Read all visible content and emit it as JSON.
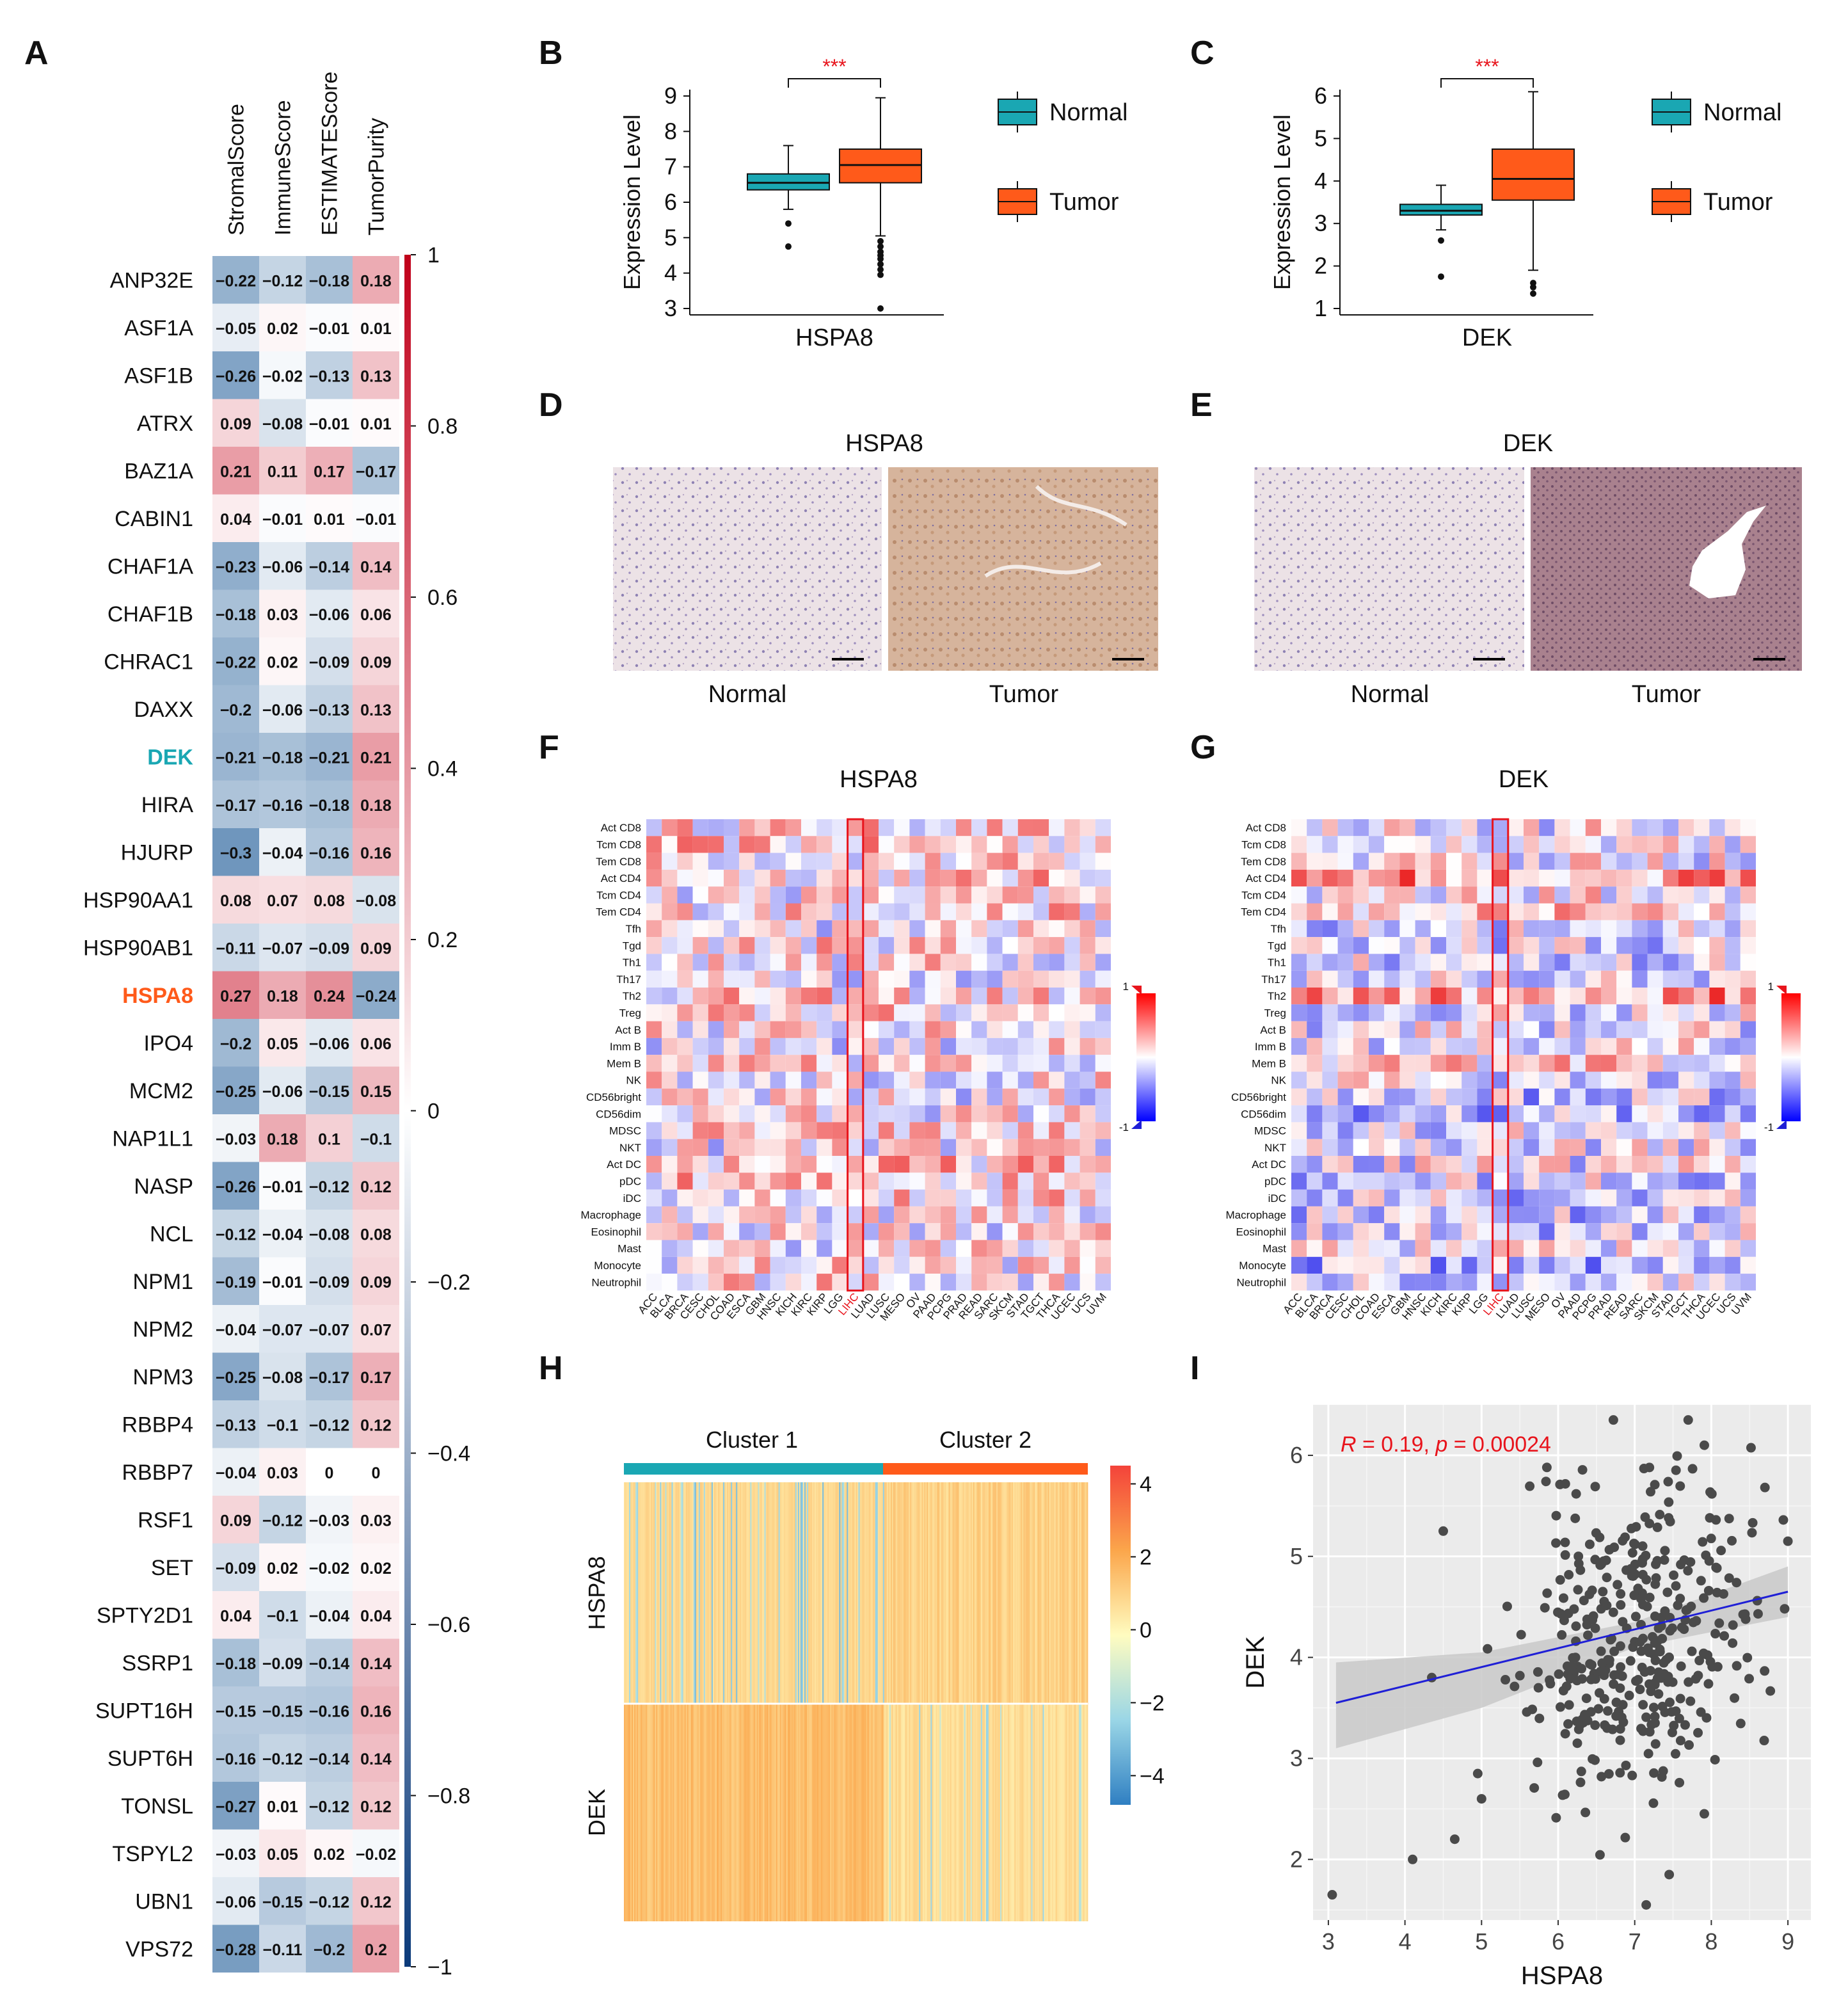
{
  "colors": {
    "teal": "#1aa7b3",
    "orange": "#ff5a1a",
    "red": "#e8141c",
    "pos": "#c0001a",
    "neg": "#0a3a7a",
    "blue": "#1f1fd6",
    "sigstar": "#e8141c"
  },
  "panels": [
    "A",
    "B",
    "C",
    "D",
    "E",
    "F",
    "G",
    "H",
    "I"
  ],
  "chart_data": [
    {
      "panel": "A",
      "type": "heatmap",
      "columns": [
        "StromalScore",
        "ImmuneScore",
        "ESTIMATEScore",
        "TumorPurity"
      ],
      "colorbar_ticks": [
        "1",
        "0.8",
        "0.6",
        "0.4",
        "0.2",
        "0",
        "−0.2",
        "−0.4",
        "−0.6",
        "−0.8",
        "−1"
      ],
      "rows": [
        {
          "gene": "ANP32E",
          "vals": [
            -0.22,
            -0.12,
            -0.18,
            0.18
          ]
        },
        {
          "gene": "ASF1A",
          "vals": [
            -0.05,
            0.02,
            -0.01,
            0.01
          ]
        },
        {
          "gene": "ASF1B",
          "vals": [
            -0.26,
            -0.02,
            -0.13,
            0.13
          ]
        },
        {
          "gene": "ATRX",
          "vals": [
            0.09,
            -0.08,
            -0.01,
            0.01
          ]
        },
        {
          "gene": "BAZ1A",
          "vals": [
            0.21,
            0.11,
            0.17,
            -0.17
          ]
        },
        {
          "gene": "CABIN1",
          "vals": [
            0.04,
            -0.01,
            0.01,
            -0.01
          ]
        },
        {
          "gene": "CHAF1A",
          "vals": [
            -0.23,
            -0.06,
            -0.14,
            0.14
          ]
        },
        {
          "gene": "CHAF1B",
          "vals": [
            -0.18,
            0.03,
            -0.06,
            0.06
          ]
        },
        {
          "gene": "CHRAC1",
          "vals": [
            -0.22,
            0.02,
            -0.09,
            0.09
          ]
        },
        {
          "gene": "DAXX",
          "vals": [
            -0.2,
            -0.06,
            -0.13,
            0.13
          ]
        },
        {
          "gene": "DEK",
          "vals": [
            -0.21,
            -0.18,
            -0.21,
            0.21
          ],
          "highlight": "teal"
        },
        {
          "gene": "HIRA",
          "vals": [
            -0.17,
            -0.16,
            -0.18,
            0.18
          ]
        },
        {
          "gene": "HJURP",
          "vals": [
            -0.3,
            -0.04,
            -0.16,
            0.16
          ]
        },
        {
          "gene": "HSP90AA1",
          "vals": [
            0.08,
            0.07,
            0.08,
            -0.08
          ]
        },
        {
          "gene": "HSP90AB1",
          "vals": [
            -0.11,
            -0.07,
            -0.09,
            0.09
          ]
        },
        {
          "gene": "HSPA8",
          "vals": [
            0.27,
            0.18,
            0.24,
            -0.24
          ],
          "highlight": "orange"
        },
        {
          "gene": "IPO4",
          "vals": [
            -0.2,
            0.05,
            -0.06,
            0.06
          ]
        },
        {
          "gene": "MCM2",
          "vals": [
            -0.25,
            -0.06,
            -0.15,
            0.15
          ]
        },
        {
          "gene": "NAP1L1",
          "vals": [
            -0.03,
            0.18,
            0.1,
            -0.1
          ]
        },
        {
          "gene": "NASP",
          "vals": [
            -0.26,
            -0.01,
            -0.12,
            0.12
          ]
        },
        {
          "gene": "NCL",
          "vals": [
            -0.12,
            -0.04,
            -0.08,
            0.08
          ]
        },
        {
          "gene": "NPM1",
          "vals": [
            -0.19,
            -0.01,
            -0.09,
            0.09
          ]
        },
        {
          "gene": "NPM2",
          "vals": [
            -0.04,
            -0.07,
            -0.07,
            0.07
          ]
        },
        {
          "gene": "NPM3",
          "vals": [
            -0.25,
            -0.08,
            -0.17,
            0.17
          ]
        },
        {
          "gene": "RBBP4",
          "vals": [
            -0.13,
            -0.1,
            -0.12,
            0.12
          ]
        },
        {
          "gene": "RBBP7",
          "vals": [
            -0.04,
            0.03,
            0,
            0
          ]
        },
        {
          "gene": "RSF1",
          "vals": [
            0.09,
            -0.12,
            -0.03,
            0.03
          ]
        },
        {
          "gene": "SET",
          "vals": [
            -0.09,
            0.02,
            -0.02,
            0.02
          ]
        },
        {
          "gene": "SPTY2D1",
          "vals": [
            0.04,
            -0.1,
            -0.04,
            0.04
          ]
        },
        {
          "gene": "SSRP1",
          "vals": [
            -0.18,
            -0.09,
            -0.14,
            0.14
          ]
        },
        {
          "gene": "SUPT16H",
          "vals": [
            -0.15,
            -0.15,
            -0.16,
            0.16
          ]
        },
        {
          "gene": "SUPT6H",
          "vals": [
            -0.16,
            -0.12,
            -0.14,
            0.14
          ]
        },
        {
          "gene": "TONSL",
          "vals": [
            -0.27,
            0.01,
            -0.12,
            0.12
          ]
        },
        {
          "gene": "TSPYL2",
          "vals": [
            -0.03,
            0.05,
            0.02,
            -0.02
          ]
        },
        {
          "gene": "UBN1",
          "vals": [
            -0.06,
            -0.15,
            -0.12,
            0.12
          ]
        },
        {
          "gene": "VPS72",
          "vals": [
            -0.28,
            -0.11,
            -0.2,
            0.2
          ]
        }
      ]
    },
    {
      "panel": "B",
      "type": "box",
      "ylabel": "Expression Level",
      "xlabel": "HSPA8",
      "significance": "***",
      "ylim": [
        3,
        9
      ],
      "yticks": [
        3,
        4,
        5,
        6,
        7,
        8,
        9
      ],
      "legend": [
        "Normal",
        "Tumor"
      ],
      "boxes": [
        {
          "name": "Normal",
          "q1": 6.35,
          "median": 6.55,
          "q3": 6.8,
          "lo": 5.8,
          "hi": 7.6,
          "outliers": [
            5.4,
            4.75
          ]
        },
        {
          "name": "Tumor",
          "q1": 6.55,
          "median": 7.05,
          "q3": 7.5,
          "lo": 5.05,
          "hi": 8.95,
          "outliers": [
            4.9,
            4.75,
            4.6,
            4.5,
            4.4,
            4.25,
            4.1,
            3.95,
            3.0
          ]
        }
      ]
    },
    {
      "panel": "C",
      "type": "box",
      "ylabel": "Expression Level",
      "xlabel": "DEK",
      "significance": "***",
      "ylim": [
        1,
        6
      ],
      "yticks": [
        1,
        2,
        3,
        4,
        5,
        6
      ],
      "legend": [
        "Normal",
        "Tumor"
      ],
      "boxes": [
        {
          "name": "Normal",
          "q1": 3.2,
          "median": 3.3,
          "q3": 3.45,
          "lo": 2.85,
          "hi": 3.9,
          "outliers": [
            2.6,
            1.75
          ]
        },
        {
          "name": "Tumor",
          "q1": 3.55,
          "median": 4.05,
          "q3": 4.75,
          "lo": 1.9,
          "hi": 6.1,
          "outliers": [
            1.6,
            1.5,
            1.35
          ]
        }
      ]
    },
    {
      "panel": "F",
      "type": "heatmap",
      "title": "HSPA8",
      "highlight_column": "LIHC",
      "cells": [
        "Act CD8",
        "Tcm CD8",
        "Tem CD8",
        "Act CD4",
        "Tcm CD4",
        "Tem CD4",
        "Tfh",
        "Tgd",
        "Th1",
        "Th17",
        "Th2",
        "Treg",
        "Act B",
        "Imm B",
        "Mem B",
        "NK",
        "CD56bright",
        "CD56dim",
        "MDSC",
        "NKT",
        "Act DC",
        "pDC",
        "iDC",
        "Macrophage",
        "Eosinophil",
        "Mast",
        "Monocyte",
        "Neutrophil"
      ],
      "cancers": [
        "ACC",
        "BLCA",
        "BRCA",
        "CESC",
        "CHOL",
        "COAD",
        "ESCA",
        "GBM",
        "HNSC",
        "KICH",
        "KIRC",
        "KIRP",
        "LGG",
        "LIHC",
        "LUAD",
        "LUSC",
        "MESO",
        "OV",
        "PAAD",
        "PCPG",
        "PRAD",
        "READ",
        "SARC",
        "SKCM",
        "STAD",
        "TGCT",
        "THCA",
        "UCEC",
        "UCS",
        "UVM"
      ],
      "scale": [
        "1",
        "-1"
      ]
    },
    {
      "panel": "G",
      "type": "heatmap",
      "title": "DEK",
      "highlight_column": "LIHC",
      "cells": [
        "Act CD8",
        "Tcm CD8",
        "Tem CD8",
        "Act CD4",
        "Tcm CD4",
        "Tem CD4",
        "Tfh",
        "Tgd",
        "Th1",
        "Th17",
        "Th2",
        "Treg",
        "Act B",
        "Imm B",
        "Mem B",
        "NK",
        "CD56bright",
        "CD56dim",
        "MDSC",
        "NKT",
        "Act DC",
        "pDC",
        "iDC",
        "Macrophage",
        "Eosinophil",
        "Mast",
        "Monocyte",
        "Neutrophil"
      ],
      "cancers": [
        "ACC",
        "BLCA",
        "BRCA",
        "CESC",
        "CHOL",
        "COAD",
        "ESCA",
        "GBM",
        "HNSC",
        "KICH",
        "KIRC",
        "KIRP",
        "LGG",
        "LIHC",
        "LUAD",
        "LUSC",
        "MESO",
        "OV",
        "PAAD",
        "PCPG",
        "PRAD",
        "READ",
        "SARC",
        "SKCM",
        "STAD",
        "TGCT",
        "THCA",
        "UCEC",
        "UCS",
        "UVM"
      ],
      "scale": [
        "1",
        "-1"
      ]
    },
    {
      "panel": "H",
      "type": "heatmap",
      "rows": [
        "HSPA8",
        "DEK"
      ],
      "clusters": [
        "Cluster 1",
        "Cluster 2"
      ],
      "colorbar_ticks": [
        "4",
        "2",
        "0",
        "−2",
        "−4"
      ],
      "range": [
        -4.8,
        4.5
      ]
    },
    {
      "panel": "I",
      "type": "scatter",
      "xlabel": "HSPA8",
      "ylabel": "DEK",
      "annotation": {
        "R_label": "R",
        "R_text": " = 0.19, ",
        "p_label": "p",
        "p_text": " = 0.00024"
      },
      "xlim": [
        2.8,
        9.3
      ],
      "ylim": [
        1.4,
        6.5
      ],
      "xticks": [
        3,
        4,
        5,
        6,
        7,
        8,
        9
      ],
      "yticks": [
        2,
        3,
        4,
        5,
        6
      ],
      "fit": {
        "x0": 3.1,
        "y0": 3.55,
        "x1": 9.0,
        "y1": 4.65
      },
      "n_points": 370
    }
  ],
  "ihc": {
    "D": {
      "title": "HSPA8",
      "labels": [
        "Normal",
        "Tumor"
      ]
    },
    "E": {
      "title": "DEK",
      "labels": [
        "Normal",
        "Tumor"
      ]
    }
  }
}
